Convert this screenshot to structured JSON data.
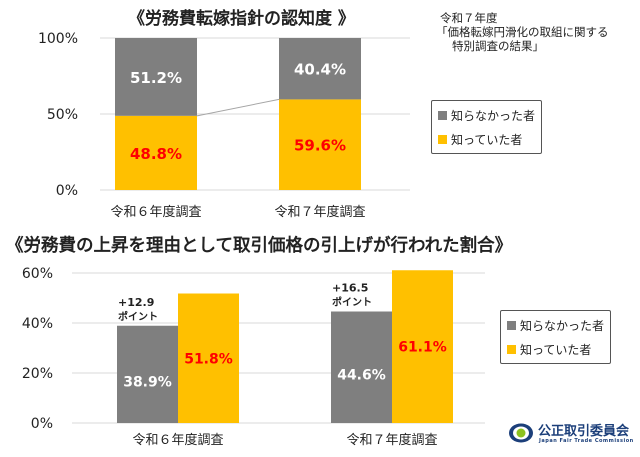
{
  "note": {
    "line1": "令和７年度",
    "line2": "「価格転嫁円滑化の取組に関する",
    "line3": "特別調査の結果」"
  },
  "colors": {
    "gray": "#7f7f7f",
    "yellow": "#ffc000",
    "red": "#ff0000",
    "grid": "#d9d9d9"
  },
  "legend": [
    {
      "label": "知らなかった者",
      "color": "#7f7f7f"
    },
    {
      "label": "知っていた者",
      "color": "#ffc000"
    }
  ],
  "logo": {
    "name": "公正取引委員会",
    "sub": "Japan Fair Trade Commission"
  },
  "chart_data": [
    {
      "type": "bar",
      "stacked": true,
      "title": "《労務費転嫁指針の認知度 》",
      "categories": [
        "令和６年度調査",
        "令和７年度調査"
      ],
      "series": [
        {
          "name": "知っていた者",
          "values": [
            48.8,
            59.6
          ],
          "labels": [
            "48.8%",
            "59.6%"
          ]
        },
        {
          "name": "知らなかった者",
          "values": [
            51.2,
            40.4
          ],
          "labels": [
            "51.2%",
            "40.4%"
          ]
        }
      ],
      "ylim": [
        0,
        100
      ],
      "yticks": [
        0,
        50,
        100
      ],
      "ytick_labels": [
        "0%",
        "50%",
        "100%"
      ],
      "grid": true,
      "legend": "right"
    },
    {
      "type": "bar",
      "stacked": false,
      "title": "《労務費の上昇を理由として取引価格の引上げが行われた割合》",
      "categories": [
        "令和６年度調査",
        "令和７年度調査"
      ],
      "series": [
        {
          "name": "知らなかった者",
          "values": [
            38.9,
            44.6
          ],
          "labels": [
            "38.9%",
            "44.6%"
          ]
        },
        {
          "name": "知っていた者",
          "values": [
            51.8,
            61.1
          ],
          "labels": [
            "51.8%",
            "61.1%"
          ]
        }
      ],
      "annotations": [
        {
          "line1": "+12.9",
          "line2": "ポイント"
        },
        {
          "line1": "+16.5",
          "line2": "ポイント"
        }
      ],
      "ylim": [
        0,
        60
      ],
      "yticks": [
        0,
        20,
        40,
        60
      ],
      "ytick_labels": [
        "0%",
        "20%",
        "40%",
        "60%"
      ],
      "grid": true,
      "legend": "right"
    }
  ]
}
